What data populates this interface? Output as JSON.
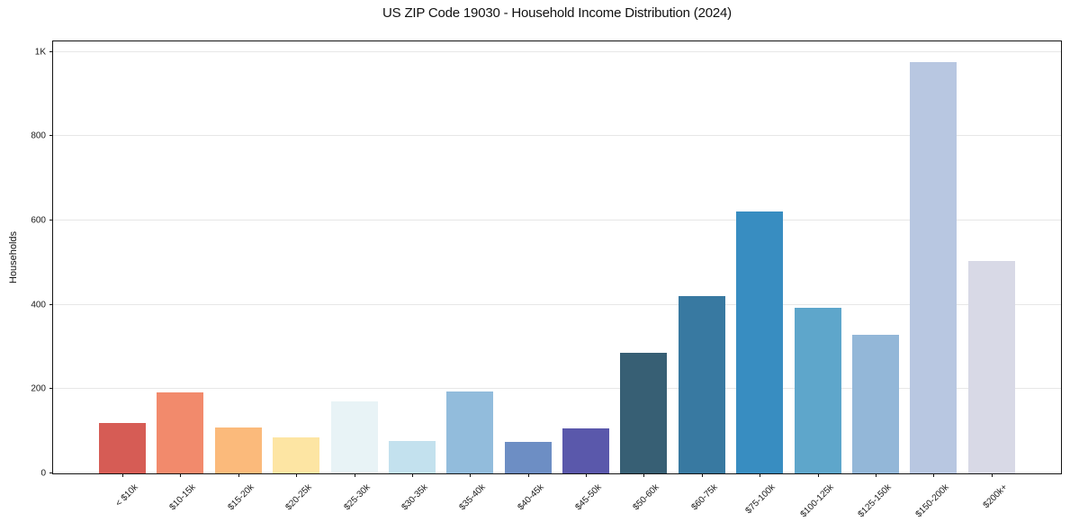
{
  "chart_data": {
    "type": "bar",
    "title": "US ZIP Code 19030 - Household Income Distribution (2024)",
    "xlabel": "",
    "ylabel": "Households",
    "categories": [
      "< $10k",
      "$10-15k",
      "$15-20k",
      "$20-25k",
      "$25-30k",
      "$30-35k",
      "$35-40k",
      "$40-45k",
      "$45-50k",
      "$50-60k",
      "$60-75k",
      "$75-100k",
      "$100-125k",
      "$125-150k",
      "$150-200k",
      "$200k+"
    ],
    "values": [
      120,
      192,
      109,
      86,
      170,
      76,
      194,
      75,
      106,
      286,
      421,
      622,
      394,
      329,
      975,
      503
    ],
    "bar_colors": [
      "#d65c55",
      "#f28a6c",
      "#fbba7b",
      "#fde5a3",
      "#e8f3f6",
      "#c3e1ee",
      "#92bcdc",
      "#6d8ec4",
      "#5a58ab",
      "#375f74",
      "#3879a1",
      "#388dc1",
      "#5ea6cb",
      "#93b7d8",
      "#b8c7e1",
      "#d8d9e6"
    ],
    "ylim": [
      0,
      1025
    ],
    "ytick_values": [
      0,
      200,
      400,
      600,
      800,
      1000
    ],
    "ytick_labels": [
      "0",
      "200",
      "400",
      "600",
      "800",
      "1K"
    ],
    "xtick_rotation": 45,
    "grid": "horizontal-only",
    "legend": "none"
  },
  "style": {
    "spine_color": "#141414",
    "grid_color": "#e7e7e7",
    "text_color": "#1a1a1a",
    "background": "#ffffff"
  }
}
